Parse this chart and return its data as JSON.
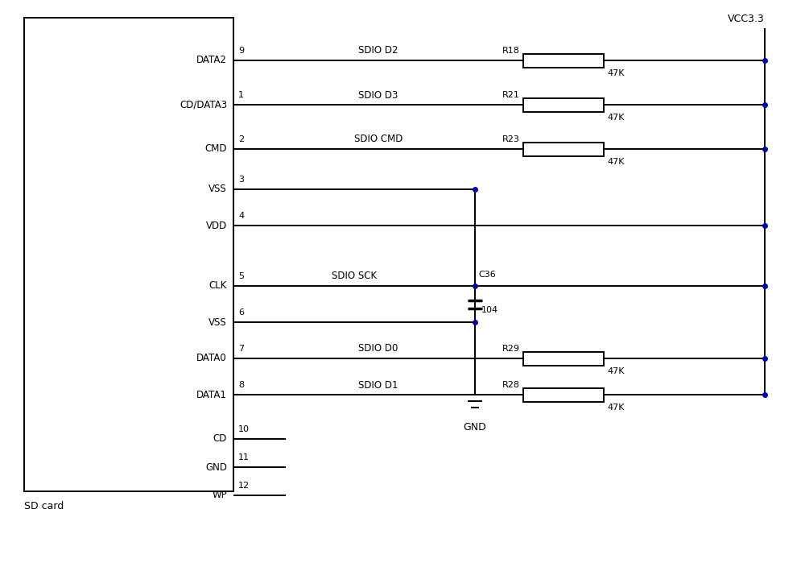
{
  "bg_color": "#ffffff",
  "line_color": "#000000",
  "blue_dot_color": "#0000bb",
  "text_color": "#000000",
  "fig_width": 10.0,
  "fig_height": 6.99,
  "dpi": 100,
  "ic_label": "SD card",
  "pins": [
    {
      "name": "DATA2",
      "pin": "9",
      "row": 0,
      "signal": "SDIO D2",
      "res_name": "R18",
      "res_val": "47K",
      "type": "resistor"
    },
    {
      "name": "CD/DATA3",
      "pin": "1",
      "row": 1,
      "signal": "SDIO D3",
      "res_name": "R21",
      "res_val": "47K",
      "type": "resistor"
    },
    {
      "name": "CMD",
      "pin": "2",
      "row": 2,
      "signal": "SDIO CMD",
      "res_name": "R23",
      "res_val": "47K",
      "type": "resistor"
    },
    {
      "name": "VSS",
      "pin": "3",
      "row": 3,
      "signal": "",
      "res_name": "",
      "res_val": "",
      "type": "gnd"
    },
    {
      "name": "VDD",
      "pin": "4",
      "row": 4,
      "signal": "",
      "res_name": "",
      "res_val": "",
      "type": "vcc"
    },
    {
      "name": "CLK",
      "pin": "5",
      "row": 5,
      "signal": "SDIO SCK",
      "res_name": "",
      "res_val": "",
      "type": "clk"
    },
    {
      "name": "VSS",
      "pin": "6",
      "row": 6,
      "signal": "",
      "res_name": "",
      "res_val": "",
      "type": "gnd"
    },
    {
      "name": "DATA0",
      "pin": "7",
      "row": 7,
      "signal": "SDIO D0",
      "res_name": "R29",
      "res_val": "47K",
      "type": "resistor"
    },
    {
      "name": "DATA1",
      "pin": "8",
      "row": 8,
      "signal": "SDIO D1",
      "res_name": "R28",
      "res_val": "47K",
      "type": "resistor"
    },
    {
      "name": "CD",
      "pin": "10",
      "row": 9,
      "signal": "",
      "res_name": "",
      "res_val": "",
      "type": "stub"
    },
    {
      "name": "GND",
      "pin": "11",
      "row": 10,
      "signal": "",
      "res_name": "",
      "res_val": "",
      "type": "stub"
    },
    {
      "name": "WP",
      "pin": "12",
      "row": 11,
      "signal": "",
      "res_name": "",
      "res_val": "",
      "type": "stub"
    }
  ],
  "vcc_label": "VCC3.3",
  "cap_label": "C36",
  "cap_val": "104",
  "gnd_label": "GND"
}
